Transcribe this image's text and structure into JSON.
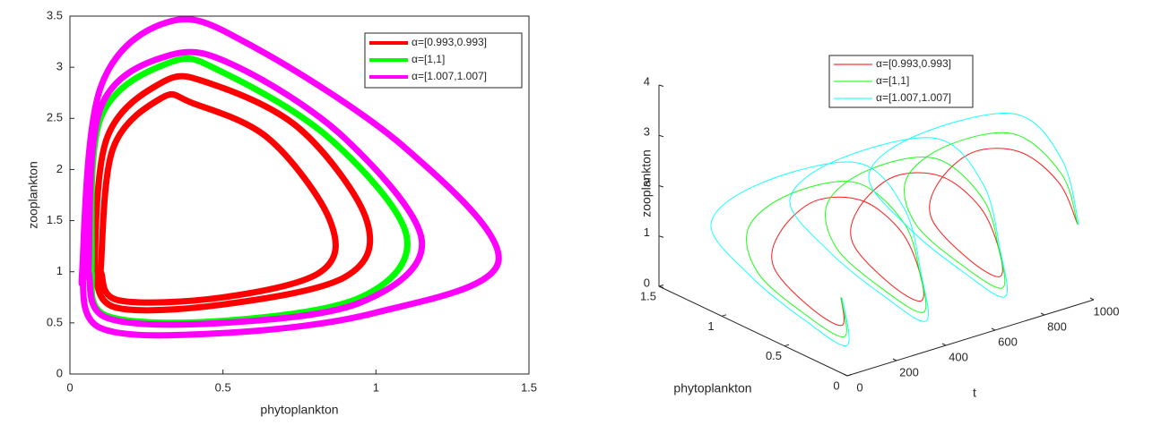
{
  "chart_data": [
    {
      "type": "line",
      "xlabel": "phytoplankton",
      "ylabel": "zooplankton",
      "xlim": [
        0,
        1.5
      ],
      "xticks": [
        0,
        0.5,
        1,
        1.5
      ],
      "ylim": [
        0,
        3.5
      ],
      "yticks": [
        0,
        0.5,
        1,
        1.5,
        2,
        2.5,
        3,
        3.5
      ],
      "legend": "upper right",
      "series": [
        {
          "name": "α=[0.993,0.993]",
          "color": "#ff0000",
          "x": [
            0.08,
            0.15,
            0.5,
            0.9,
            0.97,
            0.75,
            0.45,
            0.3,
            0.12,
            0.08,
            0.1,
            0.16,
            0.5,
            0.82,
            0.85,
            0.65,
            0.4,
            0.3,
            0.14,
            0.1
          ],
          "values": [
            1.0,
            0.65,
            0.68,
            0.95,
            1.5,
            2.4,
            2.85,
            2.85,
            2.3,
            1.0,
            1.0,
            0.72,
            0.75,
            1.0,
            1.5,
            2.3,
            2.65,
            2.7,
            2.2,
            1.0
          ]
        },
        {
          "name": "α=[1,1]",
          "color": "#00ff00",
          "x": [
            0.07,
            0.12,
            0.5,
            0.95,
            1.1,
            0.85,
            0.5,
            0.33,
            0.1,
            0.07
          ],
          "values": [
            1.0,
            0.57,
            0.52,
            0.75,
            1.35,
            2.3,
            2.95,
            3.05,
            2.5,
            1.0
          ]
        },
        {
          "name": "α=[1.007,1.007]",
          "color": "#ff00ff",
          "x": [
            0.04,
            0.1,
            0.5,
            1.0,
            1.4,
            1.1,
            0.6,
            0.33,
            0.1,
            0.04,
            0.06,
            0.12,
            0.5,
            0.95,
            1.15,
            0.9,
            0.55,
            0.33,
            0.1,
            0.06
          ],
          "values": [
            1.0,
            0.45,
            0.4,
            0.6,
            1.1,
            2.2,
            3.2,
            3.45,
            2.8,
            1.0,
            1.0,
            0.55,
            0.5,
            0.7,
            1.3,
            2.3,
            3.0,
            3.12,
            2.6,
            1.0
          ]
        }
      ]
    },
    {
      "type": "line3d",
      "xlabel": "t",
      "ylabel": "phytoplankton",
      "zlabel": "zooplankton",
      "xlim": [
        0,
        1000
      ],
      "xticks": [
        0,
        200,
        400,
        600,
        800,
        1000
      ],
      "ylim": [
        0,
        1.5
      ],
      "yticks": [
        0,
        0.5,
        1,
        1.5
      ],
      "zlim": [
        0,
        4
      ],
      "zticks": [
        0,
        1,
        2,
        3,
        4
      ],
      "legend": "upper center",
      "t": [
        0,
        40,
        80,
        120,
        160,
        200,
        240,
        280,
        320,
        360,
        400,
        440,
        480,
        520,
        560,
        600,
        640,
        680,
        720,
        760,
        800,
        840,
        880,
        920,
        960
      ],
      "series": [
        {
          "name": "α=[0.993,0.993]",
          "color": "#ff0000",
          "phyto": [
            0.05,
            0.12,
            0.45,
            0.82,
            0.85,
            0.65,
            0.35,
            0.12,
            0.05,
            0.12,
            0.45,
            0.82,
            0.85,
            0.65,
            0.35,
            0.12,
            0.05,
            0.12,
            0.45,
            0.82,
            0.85,
            0.65,
            0.35,
            0.12,
            0.05
          ],
          "values": [
            1.5,
            0.8,
            0.7,
            1.0,
            1.6,
            2.4,
            2.7,
            2.3,
            1.5,
            0.8,
            0.7,
            1.0,
            1.6,
            2.4,
            2.7,
            2.3,
            1.5,
            0.8,
            0.7,
            1.0,
            1.6,
            2.4,
            2.7,
            2.3,
            1.5
          ]
        },
        {
          "name": "α=[1,1]",
          "color": "#00ff00",
          "phyto": [
            0.05,
            0.1,
            0.5,
            0.95,
            1.1,
            0.85,
            0.4,
            0.1,
            0.05,
            0.1,
            0.5,
            0.95,
            1.1,
            0.85,
            0.4,
            0.1,
            0.05,
            0.1,
            0.5,
            0.95,
            1.1,
            0.85,
            0.4,
            0.1,
            0.05
          ],
          "values": [
            1.5,
            0.6,
            0.52,
            0.75,
            1.4,
            2.3,
            3.0,
            2.5,
            1.5,
            0.6,
            0.52,
            0.75,
            1.4,
            2.3,
            3.0,
            2.5,
            1.5,
            0.6,
            0.52,
            0.75,
            1.4,
            2.3,
            3.0,
            2.5,
            1.5
          ]
        },
        {
          "name": "α=[1.007,1.007]",
          "color": "#00ffff",
          "phyto": [
            0.04,
            0.08,
            0.5,
            1.0,
            1.4,
            1.1,
            0.4,
            0.1,
            0.04,
            0.08,
            0.5,
            1.0,
            1.4,
            1.1,
            0.4,
            0.1,
            0.04,
            0.08,
            0.5,
            1.0,
            1.4,
            1.1,
            0.4,
            0.1,
            0.04
          ],
          "values": [
            1.5,
            0.45,
            0.4,
            0.6,
            1.1,
            2.2,
            3.4,
            2.8,
            1.5,
            0.45,
            0.4,
            0.6,
            1.1,
            2.2,
            3.4,
            2.8,
            1.5,
            0.45,
            0.4,
            0.6,
            1.1,
            2.2,
            3.4,
            2.8,
            1.5
          ]
        }
      ]
    }
  ]
}
